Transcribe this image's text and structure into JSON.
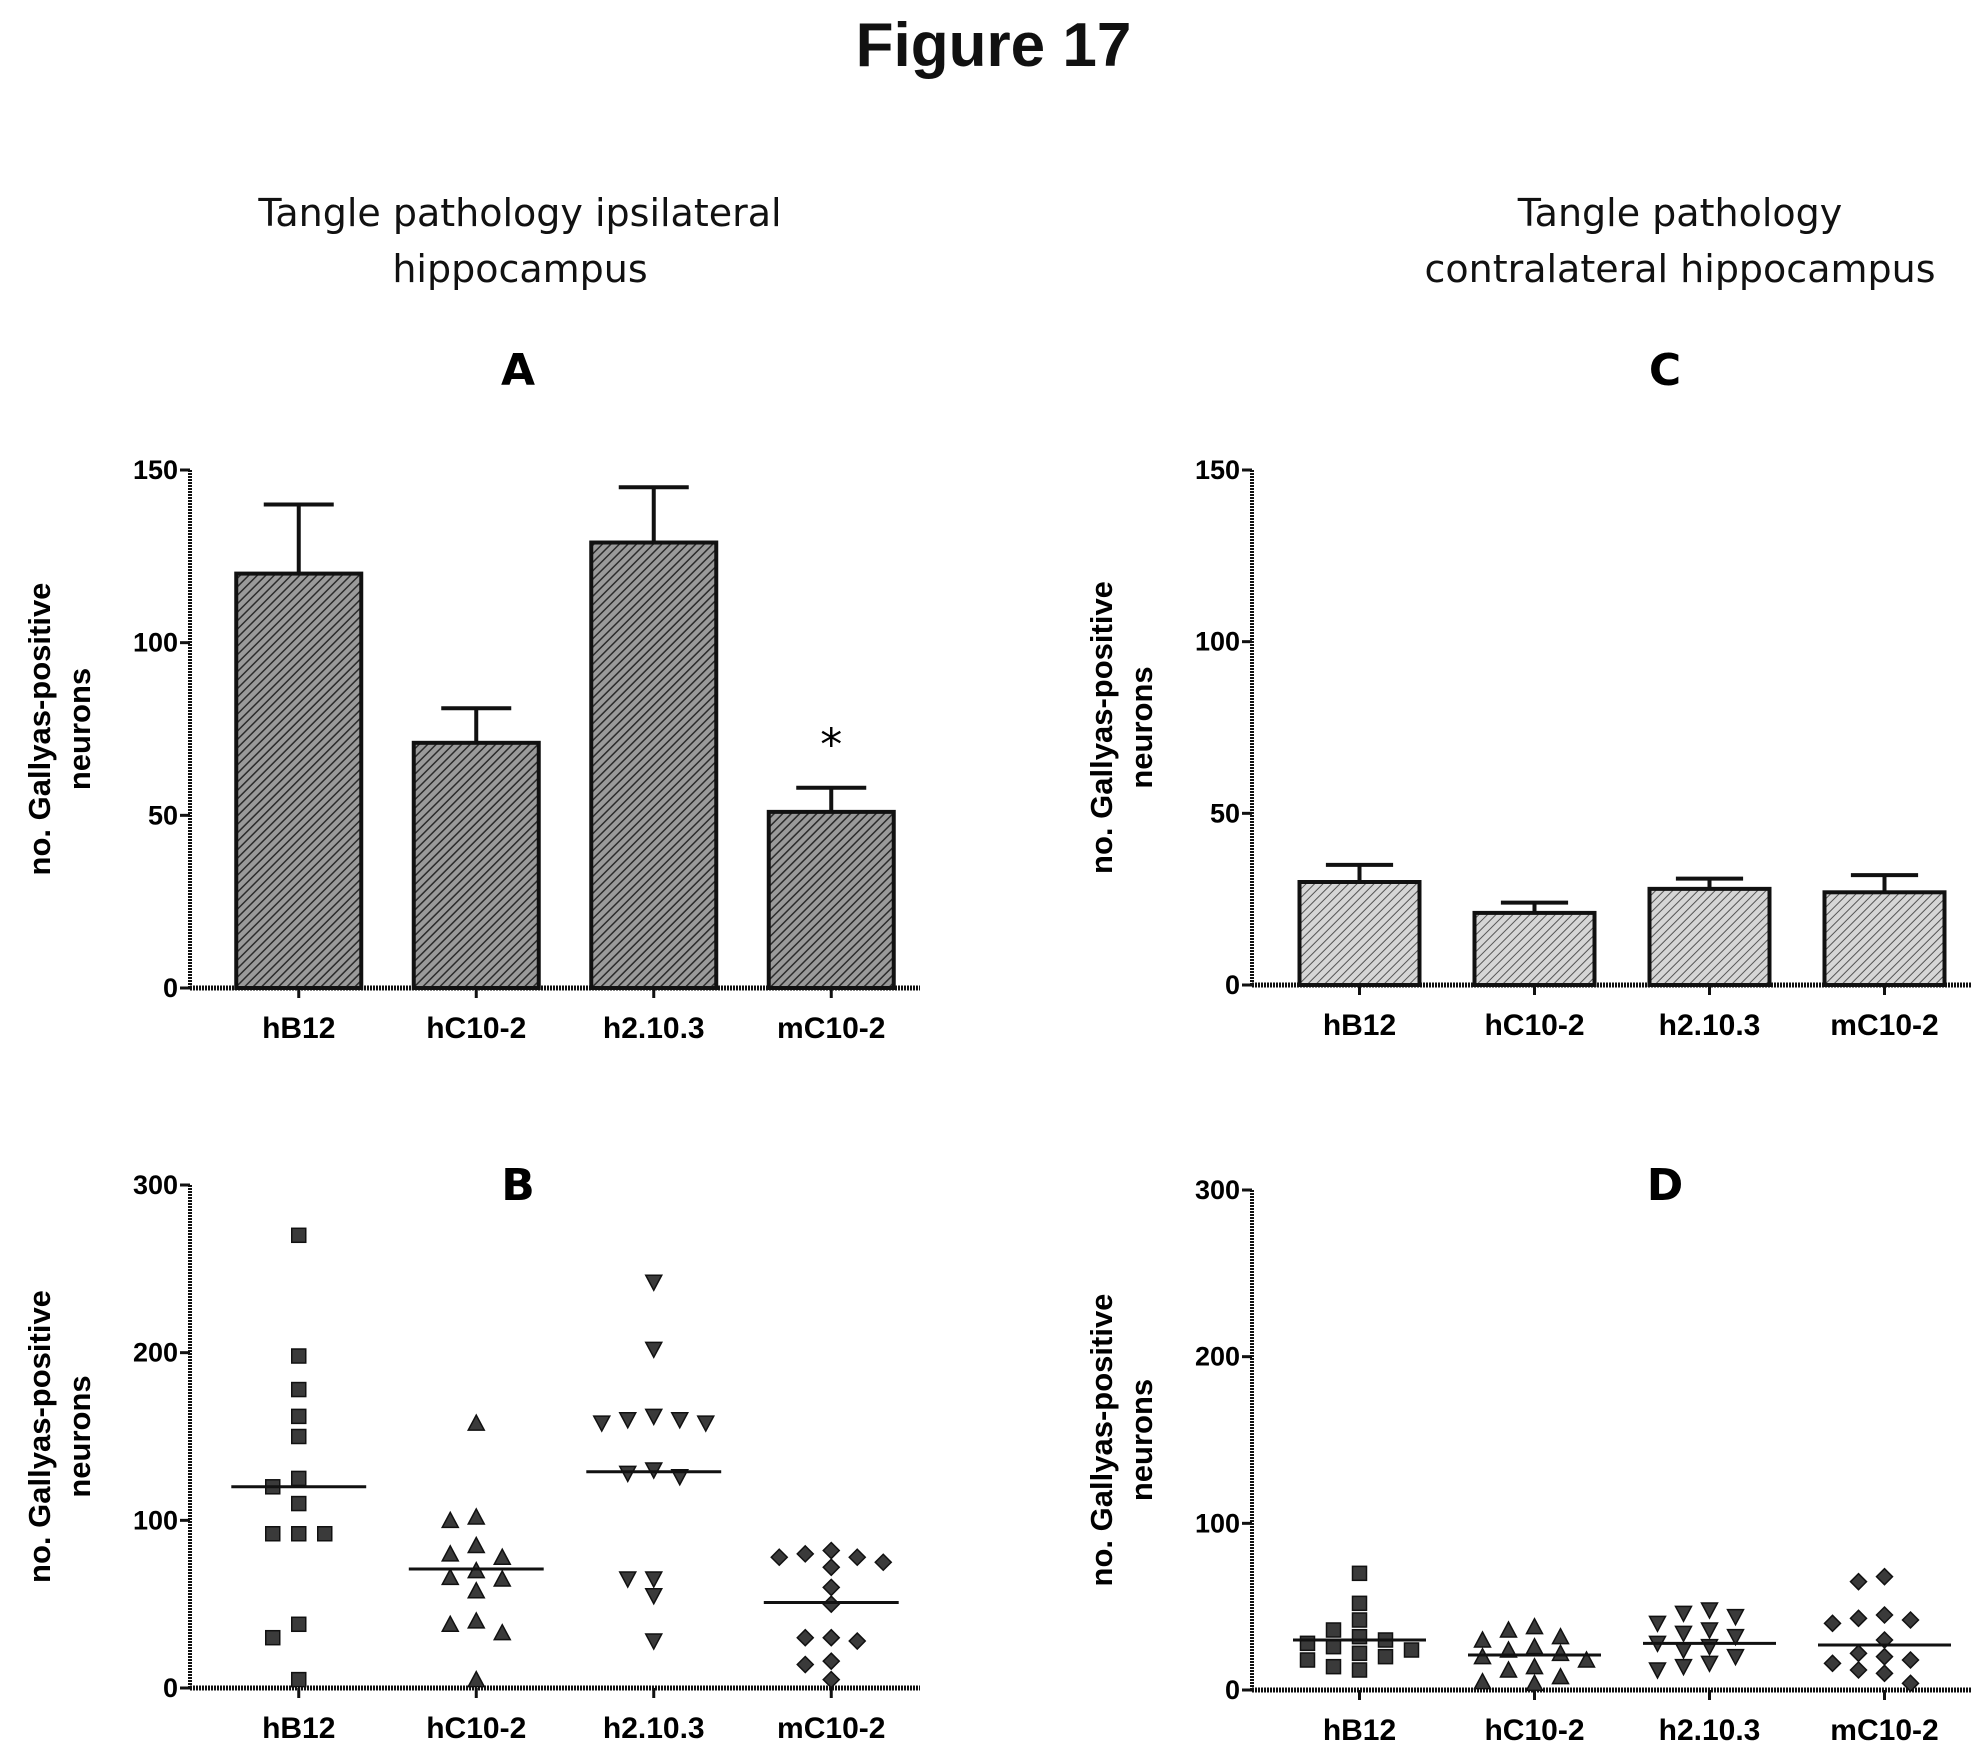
{
  "figure_title": "Figure 17",
  "column_titles": {
    "left": [
      "Tangle pathology ipsilateral",
      "hippocampus"
    ],
    "right": [
      "Tangle pathology",
      "contralateral hippocampus"
    ]
  },
  "colors": {
    "bar_fill": "#8a8a8a",
    "bar_fill_light": "#b8b8b8",
    "ink": "#111111"
  },
  "chart_data": [
    {
      "panel": "A",
      "type": "bar",
      "categories": [
        "hB12",
        "hC10-2",
        "h2.10.3",
        "mC10-2"
      ],
      "values": [
        120,
        71,
        129,
        51
      ],
      "errors": [
        20,
        10,
        16,
        7
      ],
      "annotations": [
        "",
        "",
        "",
        "*"
      ],
      "ylabel": [
        "no. Gallyas-positive",
        "neurons"
      ],
      "ylim": [
        0,
        150
      ],
      "yticks": [
        0,
        50,
        100,
        150
      ]
    },
    {
      "panel": "B",
      "type": "scatter",
      "marker_shapes": [
        "square",
        "triangle-up",
        "triangle-down",
        "diamond"
      ],
      "categories": [
        "hB12",
        "hC10-2",
        "h2.10.3",
        "mC10-2"
      ],
      "medians": [
        120,
        71,
        129,
        51
      ],
      "points": [
        [
          270,
          198,
          178,
          162,
          150,
          125,
          120,
          110,
          92,
          92,
          92,
          38,
          30,
          5
        ],
        [
          158,
          100,
          102,
          85,
          80,
          78,
          70,
          66,
          65,
          58,
          40,
          38,
          33,
          5
        ],
        [
          242,
          202,
          162,
          160,
          160,
          158,
          158,
          130,
          126,
          128,
          65,
          65,
          55,
          28
        ],
        [
          82,
          80,
          78,
          78,
          75,
          72,
          60,
          50,
          30,
          30,
          28,
          16,
          14,
          5
        ]
      ],
      "ylabel": [
        "no. Gallyas-positive",
        "neurons"
      ],
      "ylim": [
        0,
        300
      ],
      "yticks": [
        0,
        100,
        200,
        300
      ]
    },
    {
      "panel": "C",
      "type": "bar",
      "categories": [
        "hB12",
        "hC10-2",
        "h2.10.3",
        "mC10-2"
      ],
      "values": [
        30,
        21,
        28,
        27
      ],
      "errors": [
        5,
        3,
        3,
        5
      ],
      "annotations": [
        "",
        "",
        "",
        ""
      ],
      "ylabel": [
        "no. Gallyas-positive",
        "neurons"
      ],
      "ylim": [
        0,
        150
      ],
      "yticks": [
        0,
        50,
        100,
        150
      ]
    },
    {
      "panel": "D",
      "type": "scatter",
      "marker_shapes": [
        "square",
        "triangle-up",
        "triangle-down",
        "diamond"
      ],
      "categories": [
        "hB12",
        "hC10-2",
        "h2.10.3",
        "mC10-2"
      ],
      "medians": [
        30,
        21,
        28,
        27
      ],
      "points": [
        [
          70,
          52,
          42,
          36,
          32,
          30,
          28,
          26,
          24,
          22,
          20,
          18,
          14,
          12
        ],
        [
          38,
          36,
          32,
          30,
          26,
          24,
          22,
          20,
          18,
          14,
          12,
          8,
          5,
          4
        ],
        [
          48,
          46,
          44,
          40,
          36,
          34,
          32,
          28,
          26,
          24,
          20,
          16,
          14,
          12
        ],
        [
          68,
          65,
          45,
          43,
          42,
          40,
          30,
          22,
          20,
          18,
          16,
          12,
          10,
          4
        ]
      ],
      "ylabel": [
        "no. Gallyas-positive",
        "neurons"
      ],
      "ylim": [
        0,
        300
      ],
      "yticks": [
        0,
        100,
        200,
        300
      ]
    }
  ]
}
